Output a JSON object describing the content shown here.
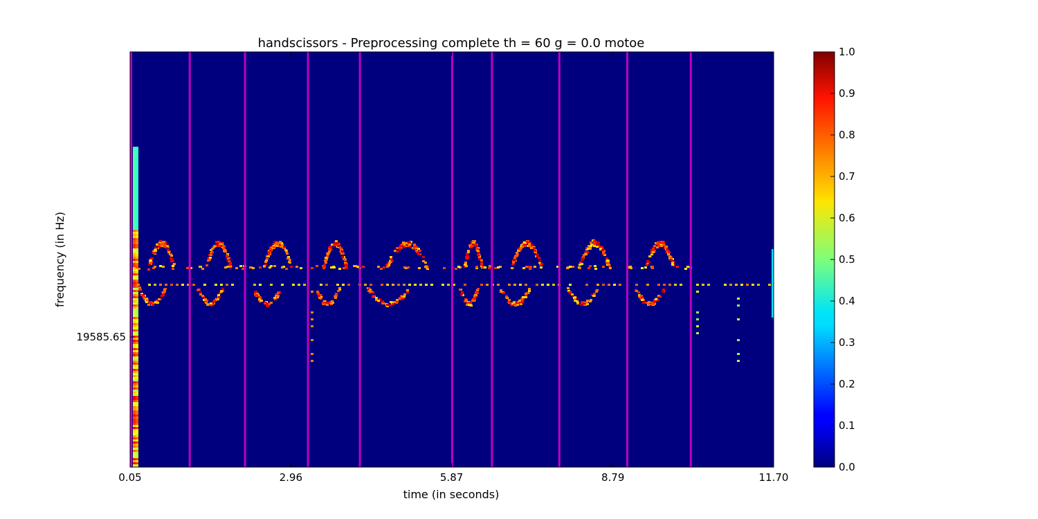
{
  "chart_data": {
    "type": "heatmap",
    "title": "handscissors - Preprocessing complete th = 60 g = 0.0 motoe",
    "xlabel": "time (in seconds)",
    "ylabel": "frequency (in Hz)",
    "xlim": [
      0.05,
      11.7
    ],
    "x_ticks": [
      0.05,
      2.96,
      5.87,
      8.79,
      11.7
    ],
    "x_tick_labels": [
      "0.05",
      "2.96",
      "5.87",
      "8.79",
      "11.70"
    ],
    "y_ticks": [
      19585.65
    ],
    "y_tick_labels": [
      "19585.65"
    ],
    "background_value": 0.0,
    "colorbar": {
      "colormap": "jet",
      "range": [
        0.0,
        1.0
      ],
      "tick_labels": [
        "0.0",
        "0.1",
        "0.2",
        "0.3",
        "0.4",
        "0.5",
        "0.6",
        "0.7",
        "0.8",
        "0.9",
        "1.0"
      ]
    },
    "marker_lines": {
      "color": "#c000c0",
      "x": [
        0.07,
        1.13,
        2.13,
        3.27,
        4.21,
        5.88,
        6.6,
        7.82,
        9.05,
        10.2
      ]
    },
    "main_band_value": 0.7,
    "main_band_hz": 19800
  },
  "colors": {
    "background": "#00007f",
    "markers": "#c000c0",
    "frame": "#000000"
  }
}
